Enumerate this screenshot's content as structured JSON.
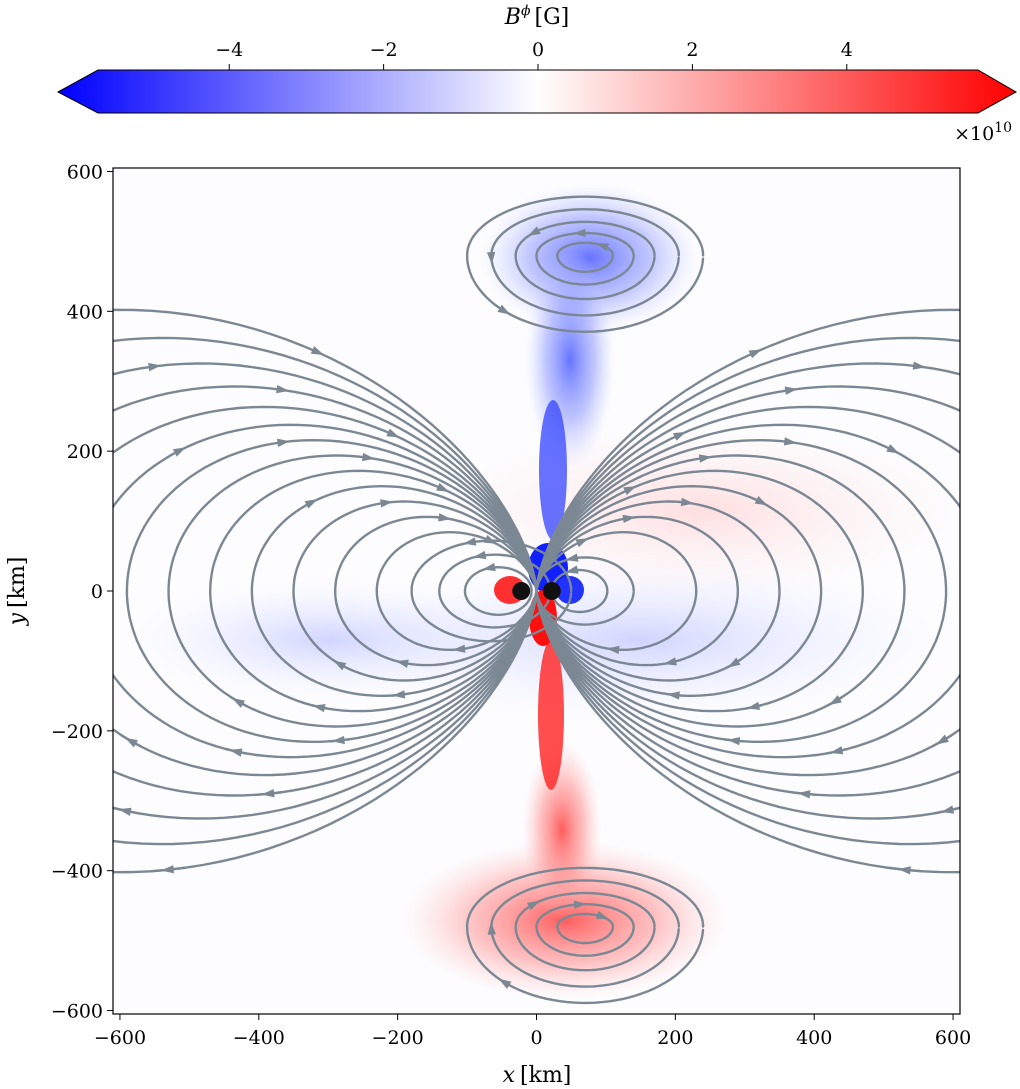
{
  "chart_data": {
    "type": "heatmap",
    "title": "",
    "colorbar": {
      "label_main": "B",
      "label_sup": "ϕ",
      "label_unit": "[G]",
      "ticks": [
        "−4",
        "−2",
        "0",
        "2",
        "4"
      ],
      "tick_values": [
        -4,
        -2,
        0,
        2,
        4
      ],
      "range": [
        -5.7,
        5.7
      ],
      "extend": "both",
      "scale_label_base": "×10",
      "scale_label_exp": "10",
      "colormap": "bwr",
      "colors": {
        "negative": "#0000ff",
        "zero": "#ffffff",
        "positive": "#ff0000"
      }
    },
    "xlabel": "x",
    "xlabel_unit": "[km]",
    "ylabel": "y",
    "ylabel_unit": "[km]",
    "xlim": [
      -610,
      610
    ],
    "ylim": [
      -605,
      605
    ],
    "xticks": [
      "−600",
      "−400",
      "−200",
      "0",
      "200",
      "400",
      "600"
    ],
    "xtick_values": [
      -600,
      -400,
      -200,
      0,
      200,
      400,
      600
    ],
    "yticks": [
      "600",
      "400",
      "200",
      "0",
      "−200",
      "−400",
      "−600"
    ],
    "ytick_values": [
      600,
      400,
      200,
      0,
      -200,
      -400,
      -600
    ],
    "features": {
      "negative_lobe": {
        "x_center": 70,
        "y_center": 480,
        "value": -3.5
      },
      "positive_lobe": {
        "x_center": 70,
        "y_center": -480,
        "value": 3.5
      },
      "jet_negative": {
        "x": 25,
        "y_range": [
          30,
          440
        ],
        "value": -6
      },
      "jet_positive": {
        "x": 25,
        "y_range": [
          -440,
          -30
        ],
        "value": 6
      },
      "compact_objects": [
        {
          "x": -22,
          "y": 0
        },
        {
          "x": 22,
          "y": 0
        }
      ]
    },
    "streamline_color": "#7b8894",
    "grid": false
  }
}
